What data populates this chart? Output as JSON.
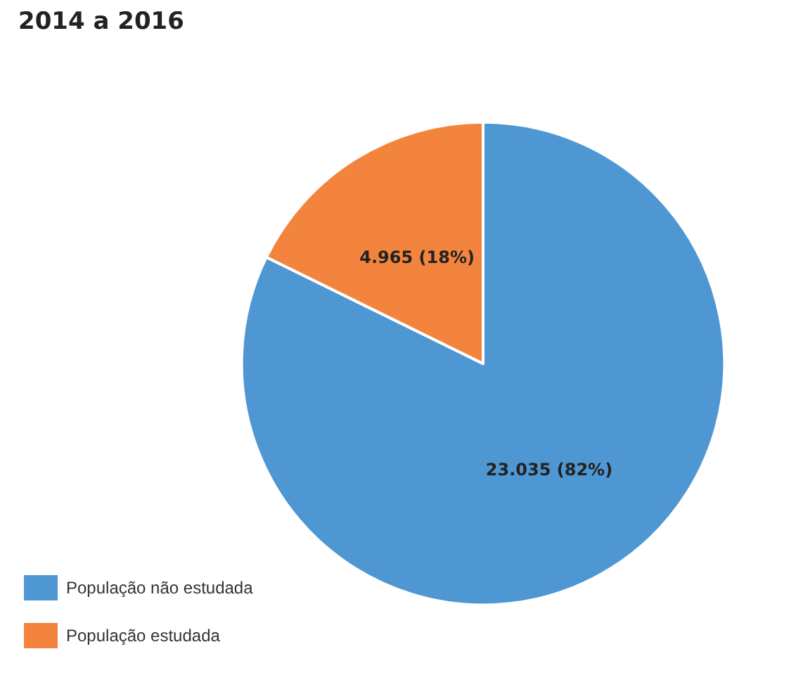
{
  "chart_data": {
    "type": "pie",
    "title": "2014 a 2016",
    "categories": [
      "População não estudada",
      "População estudada"
    ],
    "values": [
      23035,
      4965
    ],
    "colors": [
      "#4f97d3",
      "#f3843d"
    ],
    "value_labels": [
      "23.035 (82%)",
      "4.965 (18%)"
    ],
    "legend": "bottom left"
  }
}
